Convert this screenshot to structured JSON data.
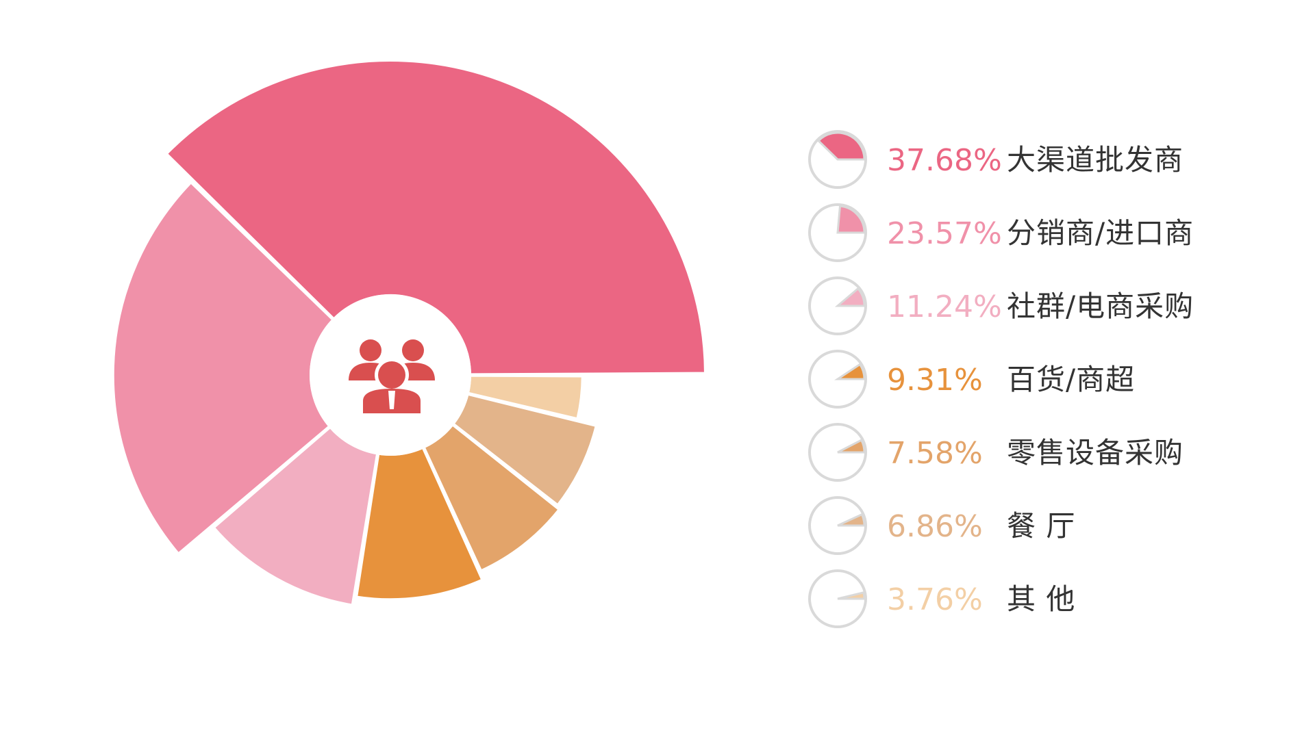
{
  "chart_data": {
    "type": "pie",
    "variant": "rose",
    "slices": [
      {
        "label": "大渠道批发商",
        "value": 37.68,
        "pct_text": "37.68%",
        "color": "#EB6683"
      },
      {
        "label": "分销商/进口商",
        "value": 23.57,
        "pct_text": "23.57%",
        "color": "#F091A9"
      },
      {
        "label": "社群/电商采购",
        "value": 11.24,
        "pct_text": "11.24%",
        "color": "#F2AEC1"
      },
      {
        "label": "百货/商超",
        "value": 9.31,
        "pct_text": "9.31%",
        "color": "#E7923C"
      },
      {
        "label": "零售设备采购",
        "value": 7.58,
        "pct_text": "7.58%",
        "color": "#E3A46A"
      },
      {
        "label": "餐 厅",
        "value": 6.86,
        "pct_text": "6.86%",
        "color": "#E3B48A"
      },
      {
        "label": "其 他",
        "value": 3.76,
        "pct_text": "3.76%",
        "color": "#F3CFA5"
      }
    ],
    "legend_position": "right",
    "center_icon": "people-icon",
    "center_icon_color": "#D94F4F",
    "legend_marker_ring_color": "#D9D9D9"
  }
}
